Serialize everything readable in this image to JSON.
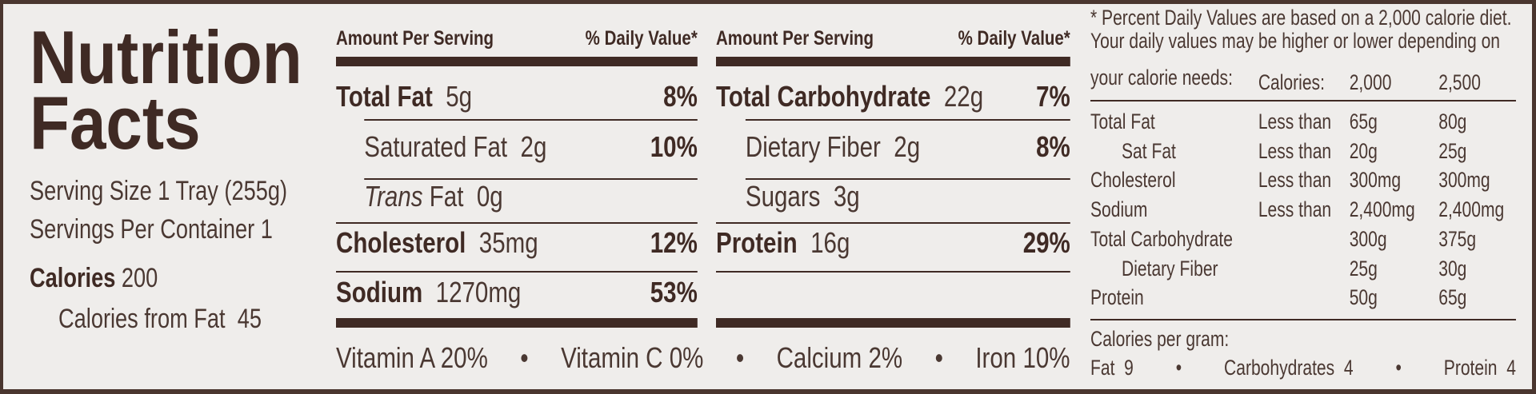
{
  "title": {
    "line1": "Nutrition",
    "line2": "Facts"
  },
  "serving": {
    "size_label": "Serving Size",
    "size_value": "1 Tray (255g)",
    "per_container_label": "Servings Per Container",
    "per_container_value": "1",
    "calories_label": "Calories",
    "calories_value": "200",
    "calories_fat_label": "Calories from Fat",
    "calories_fat_value": "45"
  },
  "columns": [
    {
      "header_left": "Amount Per Serving",
      "header_right": "% Daily Value*",
      "rows": [
        {
          "name": "Total Fat",
          "amount": "5g",
          "dv": "8%"
        },
        {
          "name": "Saturated Fat",
          "amount": "2g",
          "dv": "10%"
        },
        {
          "name_italic": "Trans",
          "name": "Fat",
          "amount": "0g"
        },
        {
          "name": "Cholesterol",
          "amount": "35mg",
          "dv": "12%"
        },
        {
          "name": "Sodium",
          "amount": "1270mg",
          "dv": "53%"
        }
      ]
    },
    {
      "header_left": "Amount Per Serving",
      "header_right": "% Daily Value*",
      "rows": [
        {
          "name": "Total Carbohydrate",
          "amount": "22g",
          "dv": "7%"
        },
        {
          "name": "Dietary Fiber",
          "amount": "2g",
          "dv": "8%"
        },
        {
          "name": "Sugars",
          "amount": "3g"
        },
        {
          "name": "Protein",
          "amount": "16g",
          "dv": "29%"
        }
      ]
    }
  ],
  "vitamins": [
    {
      "name": "Vitamin A",
      "dv": "20%"
    },
    {
      "name": "Vitamin C",
      "dv": "0%"
    },
    {
      "name": "Calcium",
      "dv": "2%"
    },
    {
      "name": "Iron",
      "dv": "10%"
    }
  ],
  "bullet": "•",
  "footnote": {
    "line1": "* Percent Daily Values are based on a 2,000 calorie diet.",
    "line2": "Your daily values may be higher or lower depending on",
    "line3": "your calorie needs:",
    "calories_label": "Calories:",
    "col_a": "2,000",
    "col_b": "2,500",
    "table": [
      {
        "name": "Total Fat",
        "qualifier": "Less than",
        "a": "65g",
        "b": "80g"
      },
      {
        "name": "Sat Fat",
        "qualifier": "Less than",
        "a": "20g",
        "b": "25g"
      },
      {
        "name": "Cholesterol",
        "qualifier": "Less than",
        "a": "300mg",
        "b": "300mg"
      },
      {
        "name": "Sodium",
        "qualifier": "Less than",
        "a": "2,400mg",
        "b": "2,400mg"
      },
      {
        "name": "Total Carbohydrate",
        "qualifier": "",
        "a": "300g",
        "b": "375g"
      },
      {
        "name": "Dietary Fiber",
        "qualifier": "",
        "a": "25g",
        "b": "30g"
      },
      {
        "name": "Protein",
        "qualifier": "",
        "a": "50g",
        "b": "65g"
      }
    ],
    "per_gram_label": "Calories per gram:",
    "per_gram": [
      {
        "name": "Fat",
        "value": "9"
      },
      {
        "name": "Carbohydrates",
        "value": "4"
      },
      {
        "name": "Protein",
        "value": "4"
      }
    ]
  },
  "colors": {
    "ink": "#3f2a24",
    "background": "#efedeb"
  }
}
